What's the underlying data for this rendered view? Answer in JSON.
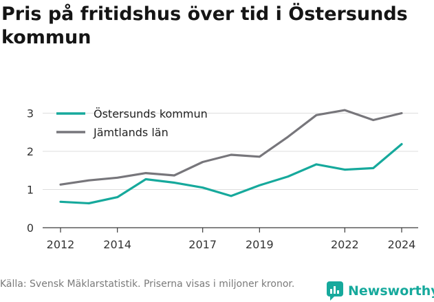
{
  "title": "Pris på fritidshus över tid i Östersunds kommun",
  "footer": {
    "source": "Källa: Svensk Mäklarstatistik. Priserna visas i miljoner kronor."
  },
  "brand": {
    "name": "Newsworthy",
    "icon": "newsworthy-logo-icon",
    "color": "#16a99c"
  },
  "chart_data": {
    "type": "line",
    "x_ticks": [
      2012,
      2014,
      2017,
      2019,
      2022,
      2024
    ],
    "y_ticks": [
      0,
      1,
      2,
      3
    ],
    "xlim": [
      2012,
      2024
    ],
    "ylim": [
      0,
      3.1
    ],
    "grid": true,
    "legend_position": "top-left",
    "series": [
      {
        "name": "Östersunds kommun",
        "color": "#16a99c",
        "x": [
          2012,
          2013,
          2014,
          2015,
          2016,
          2017,
          2018,
          2019,
          2020,
          2021,
          2022,
          2023,
          2024
        ],
        "y": [
          0.68,
          0.64,
          0.8,
          1.27,
          1.18,
          1.05,
          0.83,
          1.11,
          1.34,
          1.66,
          1.52,
          1.56,
          2.19
        ]
      },
      {
        "name": "Jämtlands län",
        "color": "#77767b",
        "x": [
          2012,
          2013,
          2014,
          2015,
          2016,
          2017,
          2018,
          2019,
          2020,
          2021,
          2022,
          2023,
          2024
        ],
        "y": [
          1.13,
          1.24,
          1.31,
          1.43,
          1.37,
          1.72,
          1.91,
          1.86,
          2.38,
          2.95,
          3.08,
          2.82,
          3.0
        ]
      }
    ]
  }
}
